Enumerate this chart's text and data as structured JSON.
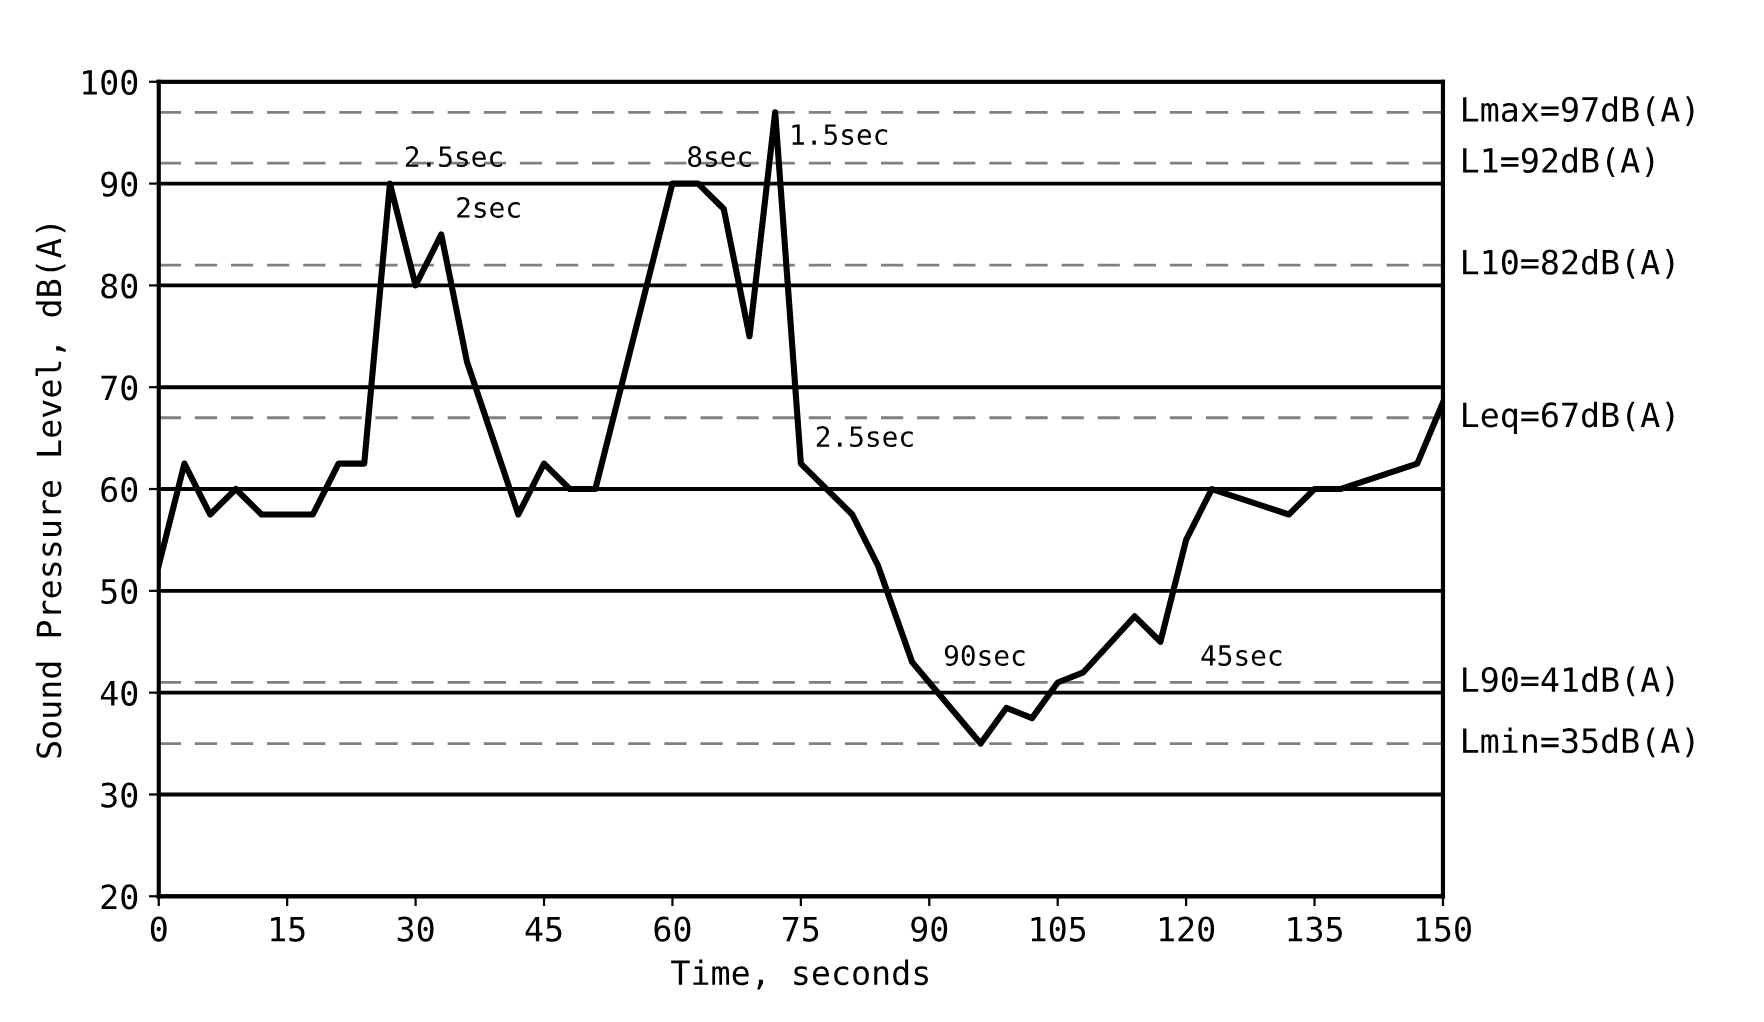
{
  "chart_data": {
    "type": "line",
    "xlabel": "Time, seconds",
    "ylabel": "Sound Pressure Level, dB(A)",
    "x": [
      0,
      3,
      6,
      9,
      12,
      18,
      21,
      24,
      27,
      30,
      33,
      36,
      42,
      45,
      48,
      51,
      60,
      63,
      66,
      69,
      72,
      75,
      81,
      84,
      88,
      90,
      96,
      99,
      102,
      105,
      108,
      114,
      117,
      120,
      123,
      132,
      135,
      138,
      147,
      150
    ],
    "series": [
      {
        "color": "#000000",
        "values": [
          52.5,
          62.5,
          57.5,
          60,
          57.5,
          57.5,
          62.5,
          62.5,
          90,
          80,
          85,
          72.5,
          57.5,
          62.5,
          60,
          60,
          90,
          90,
          87.5,
          75,
          97,
          62.5,
          57.5,
          52.5,
          43,
          41,
          35,
          38.5,
          37.5,
          41,
          42,
          47.5,
          45,
          55,
          60,
          57.5,
          60,
          60,
          62.5,
          68.5
        ]
      }
    ],
    "xlim": [
      0,
      150
    ],
    "xticks": [
      0,
      15,
      30,
      45,
      60,
      75,
      90,
      105,
      120,
      135,
      150
    ],
    "ylim": [
      20,
      100
    ],
    "yticks": [
      20,
      30,
      40,
      50,
      60,
      70,
      80,
      90,
      100
    ],
    "grid": "y",
    "marker": "none",
    "line_style": "solid",
    "legend": false,
    "ref_lines": [
      {
        "axis": "y",
        "value": 97,
        "label": "Lmax=97dB(A)",
        "color": "#808080",
        "line_style": "dashed"
      },
      {
        "axis": "y",
        "value": 92,
        "label": "L1=92dB(A)",
        "color": "#808080",
        "line_style": "dashed"
      },
      {
        "axis": "y",
        "value": 82,
        "label": "L10=82dB(A)",
        "color": "#808080",
        "line_style": "dashed"
      },
      {
        "axis": "y",
        "value": 67,
        "label": "Leq=67dB(A)",
        "color": "#808080",
        "line_style": "dashed"
      },
      {
        "axis": "y",
        "value": 41,
        "label": "L90=41dB(A)",
        "color": "#808080",
        "line_style": "dashed"
      },
      {
        "axis": "y",
        "value": 35,
        "label": "Lmin=35dB(A)",
        "color": "#808080",
        "line_style": "dashed"
      }
    ],
    "annotations": [
      {
        "text": "2.5sec",
        "x": 27,
        "y": 90
      },
      {
        "text": "2sec",
        "x": 33,
        "y": 85
      },
      {
        "text": "8sec",
        "x": 60,
        "y": 90
      },
      {
        "text": "1.5sec",
        "x": 72,
        "y": 97
      },
      {
        "text": "2.5sec",
        "x": 75,
        "y": 62.5
      },
      {
        "text": "90sec",
        "x": 90,
        "y": 41
      },
      {
        "text": "45sec",
        "x": 120,
        "y": 41
      }
    ]
  }
}
